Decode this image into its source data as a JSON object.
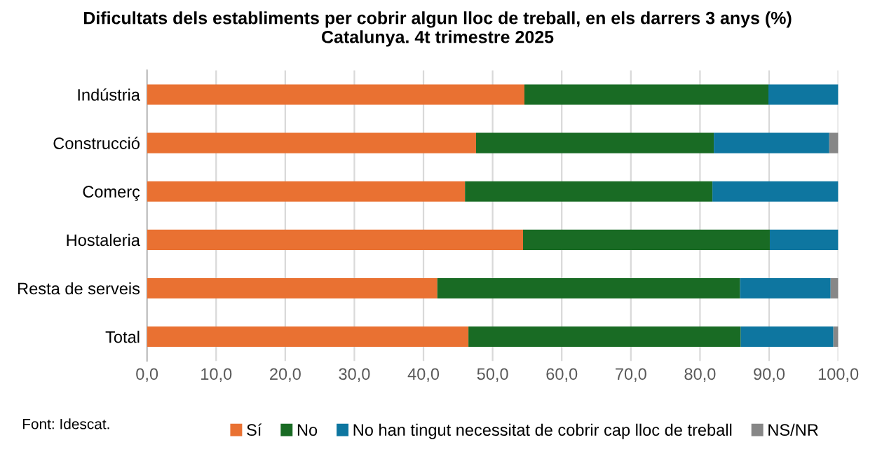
{
  "chart_data": {
    "type": "bar",
    "orientation": "horizontal",
    "stacked": true,
    "title": "Dificultats dels establiments per cobrir algun lloc de treball, en els darrers 3 anys (%)\nCatalunya. 4t trimestre 2025",
    "categories": [
      "Indústria",
      "Construcció",
      "Comerç",
      "Hostaleria",
      "Resta de serveis",
      "Total"
    ],
    "series": [
      {
        "name": "Sí",
        "color": "#e97132",
        "values": [
          54.6,
          47.6,
          46.0,
          54.4,
          42.0,
          46.5
        ]
      },
      {
        "name": "No",
        "color": "#196b24",
        "values": [
          35.3,
          34.4,
          35.8,
          35.7,
          43.8,
          39.4
        ]
      },
      {
        "name": "No han tingut necessitat de cobrir cap lloc de treball",
        "color": "#0e76a0",
        "values": [
          10.1,
          16.7,
          18.2,
          9.9,
          13.1,
          13.4
        ]
      },
      {
        "name": "NS/NR",
        "color": "#878787",
        "values": [
          0,
          1.3,
          0,
          0,
          1.1,
          0.7
        ]
      }
    ],
    "xlim": [
      0,
      100
    ],
    "xticks": [
      {
        "value": 0,
        "label": "0,0"
      },
      {
        "value": 10,
        "label": "10,0"
      },
      {
        "value": 20,
        "label": "20,0"
      },
      {
        "value": 30,
        "label": "30,0"
      },
      {
        "value": 40,
        "label": "40,0"
      },
      {
        "value": 50,
        "label": "50,0"
      },
      {
        "value": 60,
        "label": "60,0"
      },
      {
        "value": 70,
        "label": "70,0"
      },
      {
        "value": 80,
        "label": "80,0"
      },
      {
        "value": 90,
        "label": "90,0"
      },
      {
        "value": 100,
        "label": "100,0"
      }
    ],
    "grid": "x",
    "legend": "bottom",
    "annotations": [
      "Font: Idescat."
    ]
  }
}
